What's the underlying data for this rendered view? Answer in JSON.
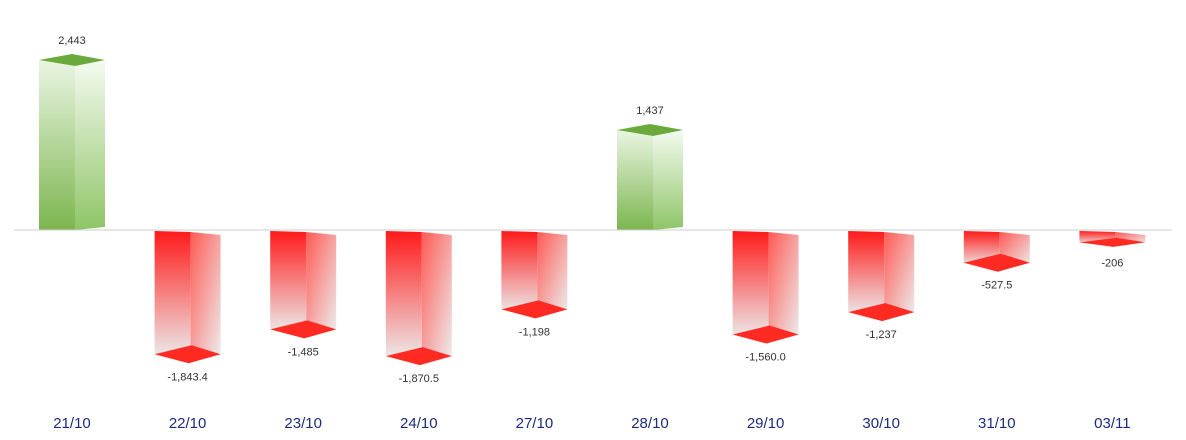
{
  "chart_data": {
    "type": "bar",
    "style": "3d-columns",
    "categories": [
      "21/10",
      "22/10",
      "23/10",
      "24/10",
      "27/10",
      "28/10",
      "29/10",
      "30/10",
      "31/10",
      "03/11"
    ],
    "values": [
      2443,
      -1843.4,
      -1485,
      -1870.5,
      -1198,
      1437,
      -1560.0,
      -1237,
      -527.5,
      -206
    ],
    "data_labels": [
      "2,443",
      "-1,843.4",
      "-1,485",
      "-1,870.5",
      "-1,198",
      "1,437",
      "-1,560.0",
      "-1,237",
      "-527.5",
      "-206"
    ],
    "title": "",
    "xlabel": "",
    "ylabel": "",
    "ylim": [
      -2200,
      2500
    ],
    "grid": false,
    "legend": "none",
    "colors": {
      "positive_top": "#6aaa3c",
      "positive_body": "#7cb64f",
      "positive_light": "#eaf5e3",
      "negative_top": "#ff2a22",
      "negative_body": "#ff1a1a",
      "negative_light": "#ececec",
      "baseline": "#cccccc",
      "tick_text": "#1f2b7a",
      "label_text": "#333333"
    }
  }
}
